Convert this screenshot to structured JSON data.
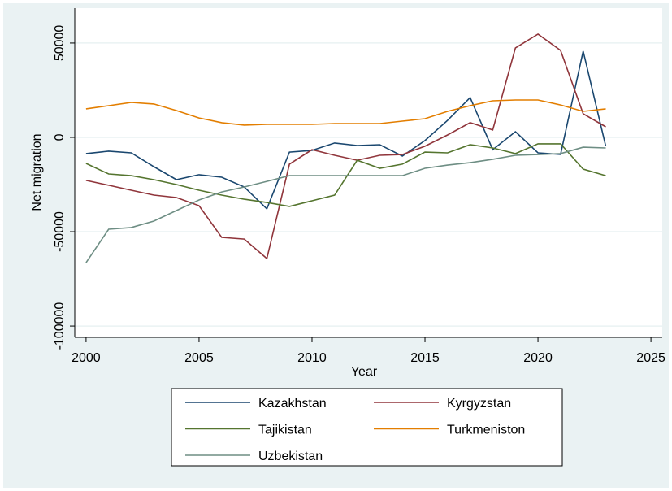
{
  "chart_data": {
    "type": "line",
    "xlabel": "Year",
    "ylabel": "Net migration",
    "x": [
      2000,
      2001,
      2002,
      2003,
      2004,
      2005,
      2006,
      2007,
      2008,
      2009,
      2010,
      2011,
      2012,
      2013,
      2014,
      2015,
      2016,
      2017,
      2018,
      2019,
      2020,
      2021,
      2022,
      2023
    ],
    "series": [
      {
        "name": "Kazakhstan",
        "color": "#1a476f",
        "values": [
          -8600,
          -7300,
          -8200,
          -15500,
          -22400,
          -19800,
          -21100,
          -26300,
          -37900,
          -7800,
          -6900,
          -3000,
          -4300,
          -3900,
          -9900,
          -1700,
          9000,
          21100,
          -6500,
          3000,
          -8200,
          -9000,
          45700,
          -4700
        ]
      },
      {
        "name": "Kyrgyzstan",
        "color": "#90353b",
        "values": [
          -22800,
          -25400,
          -28000,
          -30600,
          -31900,
          -36200,
          -53000,
          -53900,
          -64200,
          -14200,
          -6500,
          -9500,
          -12100,
          -9500,
          -9100,
          -4700,
          1300,
          7800,
          3900,
          47400,
          54700,
          46100,
          12500,
          5600
        ]
      },
      {
        "name": "Tajikistan",
        "color": "#55752f",
        "values": [
          -13800,
          -19400,
          -20300,
          -22400,
          -25000,
          -28000,
          -30600,
          -32800,
          -34500,
          -36600,
          -33600,
          -30600,
          -12100,
          -16400,
          -14200,
          -7800,
          -8200,
          -3900,
          -5600,
          -8600,
          -3400,
          -3400,
          -16800,
          -20300
        ]
      },
      {
        "name": "Turkmeniston",
        "color": "#e37e00",
        "values": [
          15100,
          16800,
          18500,
          17700,
          14200,
          10300,
          7800,
          6500,
          6900,
          6900,
          6900,
          7300,
          7300,
          7300,
          8600,
          9900,
          13800,
          16800,
          19400,
          19800,
          19800,
          17200,
          13800,
          15100
        ]
      },
      {
        "name": "Uzbekistan",
        "color": "#6e8e84",
        "values": [
          -66400,
          -48700,
          -47800,
          -44400,
          -38800,
          -33200,
          -28900,
          -26300,
          -23300,
          -20300,
          -20300,
          -20300,
          -20300,
          -20300,
          -20300,
          -16400,
          -14700,
          -13400,
          -11600,
          -9500,
          -9100,
          -8600,
          -5200,
          -5600
        ]
      }
    ],
    "xlim": [
      1999.5,
      2025.5
    ],
    "xticks": [
      2000,
      2005,
      2010,
      2015,
      2020,
      2025
    ],
    "ylim": [
      -106000,
      68500
    ],
    "yticks": [
      -100000,
      -50000,
      0,
      50000
    ],
    "grid": true,
    "legend": "bottom"
  }
}
